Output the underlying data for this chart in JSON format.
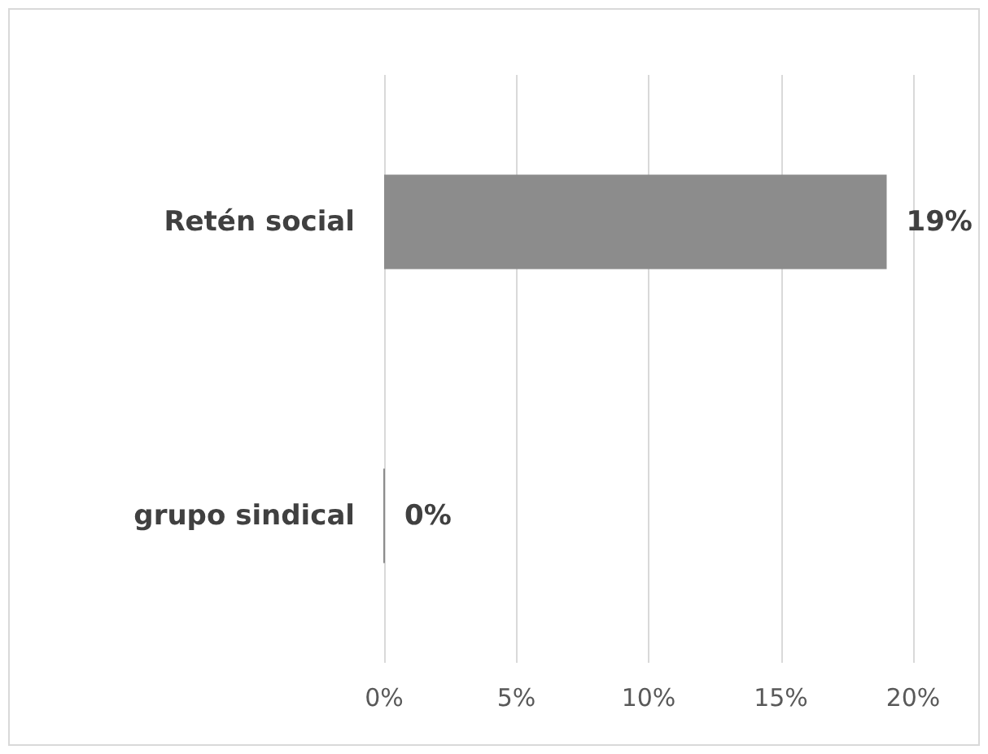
{
  "chart_data": {
    "type": "bar",
    "orientation": "horizontal",
    "categories": [
      "Retén social",
      "grupo sindical"
    ],
    "values": [
      19,
      0
    ],
    "color": "#8c8c8c",
    "value_labels": [
      "19%",
      "0%"
    ],
    "xlim": [
      0,
      20
    ],
    "xticks": [
      {
        "value": 0,
        "label": "0%"
      },
      {
        "value": 5,
        "label": "5%"
      },
      {
        "value": 10,
        "label": "10%"
      },
      {
        "value": 15,
        "label": "15%"
      },
      {
        "value": 20,
        "label": "20%"
      }
    ],
    "grid": "x"
  }
}
